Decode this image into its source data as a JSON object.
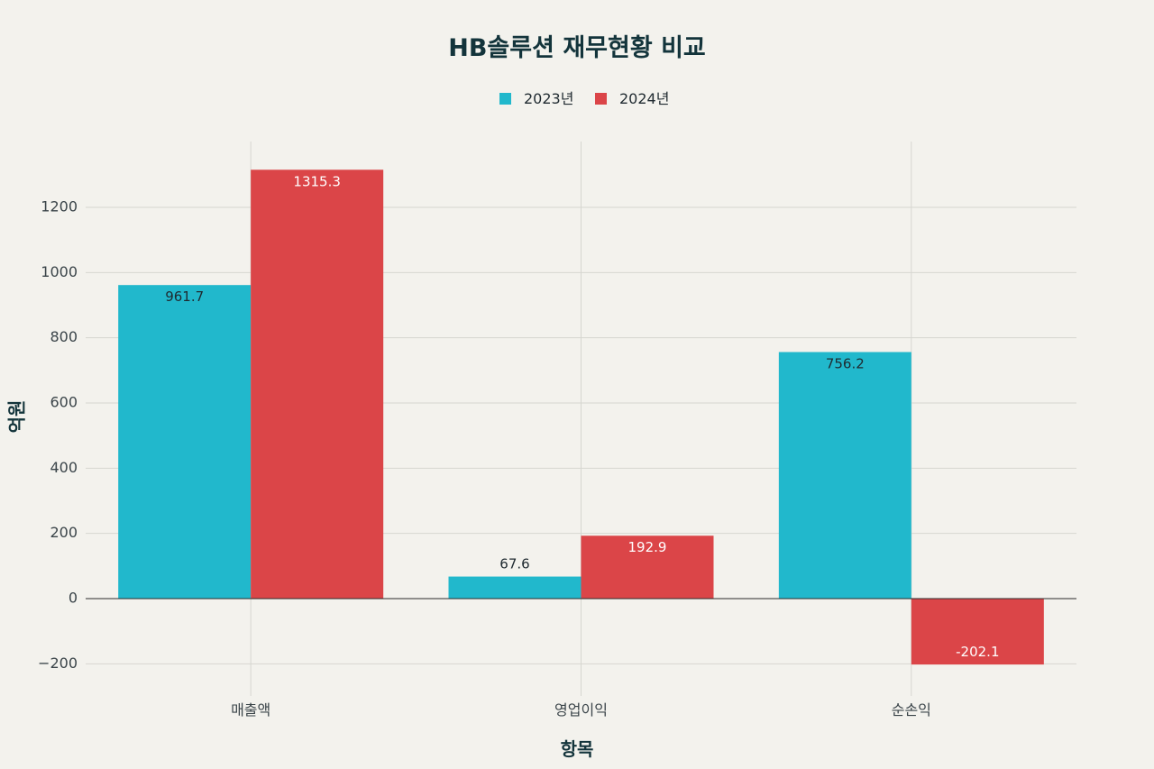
{
  "chart_data": {
    "type": "bar",
    "title": "HB솔루션 재무현황 비교",
    "xlabel": "항목",
    "ylabel": "억원",
    "categories": [
      "매출액",
      "영업이익",
      "순손익"
    ],
    "series": [
      {
        "name": "2023년",
        "values": [
          961.7,
          67.6,
          756.2
        ],
        "color": "#21b8cc",
        "labels": [
          "961.7",
          "67.6",
          "756.2"
        ]
      },
      {
        "name": "2024년",
        "values": [
          1315.3,
          192.9,
          -202.1
        ],
        "color": "#db4548",
        "labels": [
          "1315.3",
          "192.9",
          "-202.1"
        ]
      }
    ],
    "ylim": [
      -270,
      1400
    ],
    "yticks": [
      -200,
      0,
      200,
      400,
      600,
      800,
      1000,
      1200
    ],
    "ytick_labels": [
      "−200",
      "0",
      "200",
      "400",
      "600",
      "800",
      "1000",
      "1200"
    ],
    "grid": true,
    "legend": "top-center"
  }
}
